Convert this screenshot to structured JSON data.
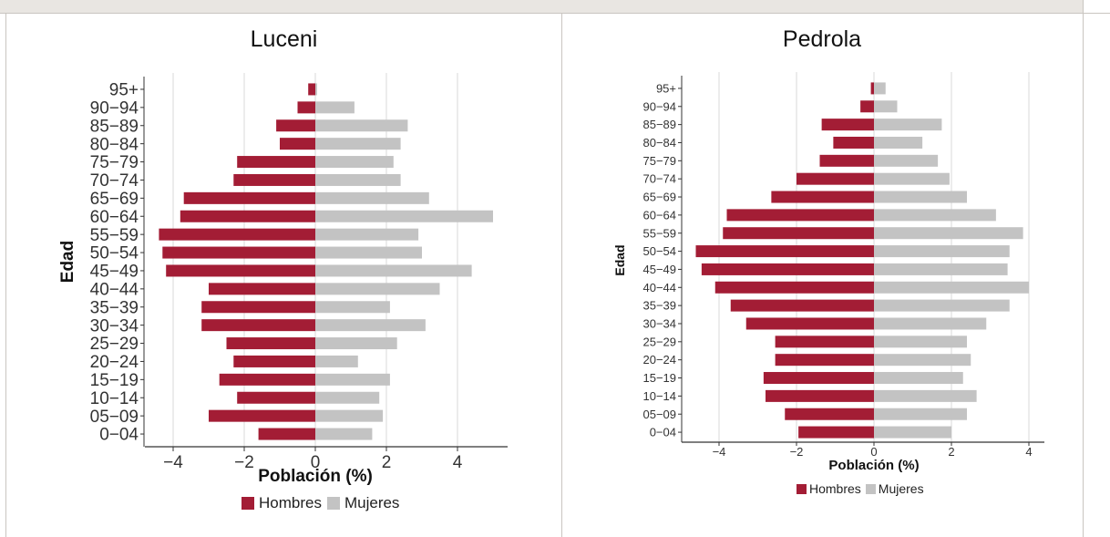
{
  "colors": {
    "hombres": "#a31d35",
    "mujeres": "#c3c3c3",
    "grid": "#d9d9d9",
    "axis": "#333333"
  },
  "chart_data": [
    {
      "type": "bar",
      "title": "Luceni",
      "xlabel": "Población (%)",
      "ylabel": "Edad",
      "xlim": [
        -4.5,
        5.2
      ],
      "xticks": [
        "−4",
        "−2",
        "0",
        "2",
        "4"
      ],
      "xtick_values": [
        -4,
        -2,
        0,
        2,
        4
      ],
      "categories": [
        "0−04",
        "05−09",
        "10−14",
        "15−19",
        "20−24",
        "25−29",
        "30−34",
        "35−39",
        "40−44",
        "45−49",
        "50−54",
        "55−59",
        "60−64",
        "65−69",
        "70−74",
        "75−79",
        "80−84",
        "85−89",
        "90−94",
        "95+"
      ],
      "series": [
        {
          "name": "Hombres",
          "values": [
            -1.6,
            -3.0,
            -2.2,
            -2.7,
            -2.3,
            -2.5,
            -3.2,
            -3.2,
            -3.0,
            -4.2,
            -4.3,
            -4.4,
            -3.8,
            -3.7,
            -2.3,
            -2.2,
            -1.0,
            -1.1,
            -0.5,
            -0.2
          ]
        },
        {
          "name": "Mujeres",
          "values": [
            1.6,
            1.9,
            1.8,
            2.1,
            1.2,
            2.3,
            3.1,
            2.1,
            3.5,
            4.4,
            3.0,
            2.9,
            5.0,
            3.2,
            2.4,
            2.2,
            2.4,
            2.6,
            1.1,
            0.05
          ]
        }
      ],
      "legend": "bottom",
      "grid": true
    },
    {
      "type": "bar",
      "title": "Pedrola",
      "xlabel": "Población (%)",
      "ylabel": "Edad",
      "xlim": [
        -5.0,
        4.4
      ],
      "xticks": [
        "−4",
        "−2",
        "0",
        "2",
        "4"
      ],
      "xtick_values": [
        -4,
        -2,
        0,
        2,
        4
      ],
      "categories": [
        "0−04",
        "05−09",
        "10−14",
        "15−19",
        "20−24",
        "25−29",
        "30−34",
        "35−39",
        "40−44",
        "45−49",
        "50−54",
        "55−59",
        "60−64",
        "65−69",
        "70−74",
        "75−79",
        "80−84",
        "85−89",
        "90−94",
        "95+"
      ],
      "series": [
        {
          "name": "Hombres",
          "values": [
            -1.95,
            -2.3,
            -2.8,
            -2.85,
            -2.55,
            -2.55,
            -3.3,
            -3.7,
            -4.1,
            -4.45,
            -4.6,
            -3.9,
            -3.8,
            -2.65,
            -2.0,
            -1.4,
            -1.05,
            -1.35,
            -0.35,
            -0.08
          ]
        },
        {
          "name": "Mujeres",
          "values": [
            2.0,
            2.4,
            2.65,
            2.3,
            2.5,
            2.4,
            2.9,
            3.5,
            4.0,
            3.45,
            3.5,
            3.85,
            3.15,
            2.4,
            1.95,
            1.65,
            1.25,
            1.75,
            0.6,
            0.3
          ]
        }
      ],
      "legend": "bottom",
      "grid": true
    }
  ]
}
